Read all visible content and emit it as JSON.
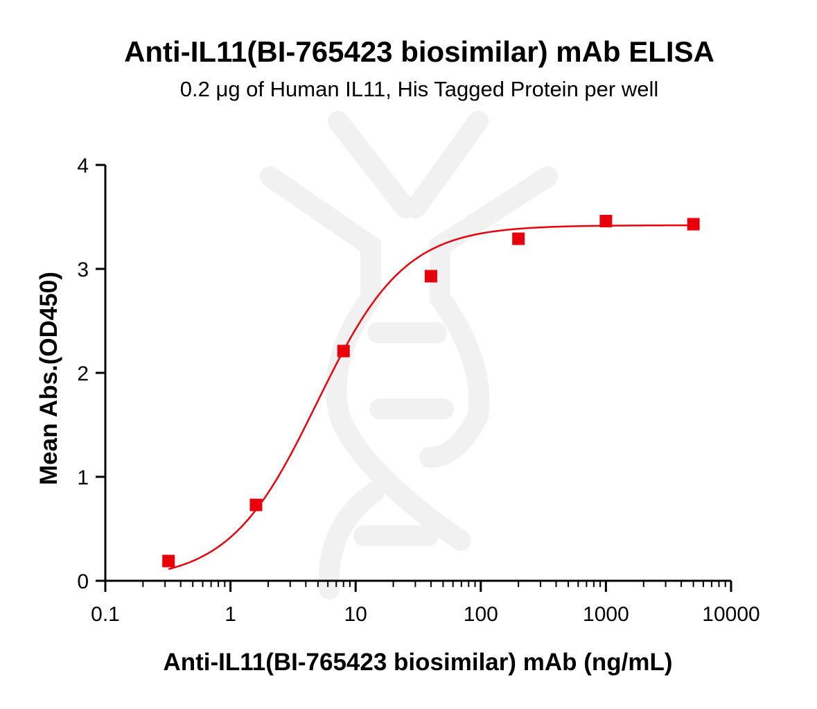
{
  "chart_data": {
    "type": "scatter",
    "title": "Anti-IL11(BI-765423 biosimilar) mAb ELISA",
    "subtitle": "0.2 μg of Human IL11, His Tagged Protein  per well",
    "xlabel": "Anti-IL11(BI-765423 biosimilar) mAb (ng/mL)",
    "ylabel": "Mean Abs.(OD450)",
    "x_scale": "log",
    "xlim": [
      0.1,
      10000
    ],
    "ylim": [
      0,
      4
    ],
    "x_ticks": [
      0.1,
      1,
      10,
      100,
      1000,
      10000
    ],
    "x_tick_labels": [
      "0.1",
      "1",
      "10",
      "100",
      "1000",
      "10000"
    ],
    "y_ticks": [
      0,
      1,
      2,
      3,
      4
    ],
    "y_tick_labels": [
      "0",
      "1",
      "2",
      "3",
      "4"
    ],
    "grid": false,
    "legend": "none",
    "series": [
      {
        "x": [
          0.32,
          1.6,
          8,
          40,
          200,
          1000,
          5000
        ],
        "y": [
          0.19,
          0.73,
          2.21,
          2.93,
          3.29,
          3.46,
          3.43
        ],
        "marker": "square",
        "color": "#e8000b",
        "fit": {
          "model": "four-parameter logistic",
          "bottom": 0,
          "top": 3.42,
          "ec50": 4.9,
          "hill": 1.24,
          "color": "#e8000b"
        }
      }
    ]
  }
}
